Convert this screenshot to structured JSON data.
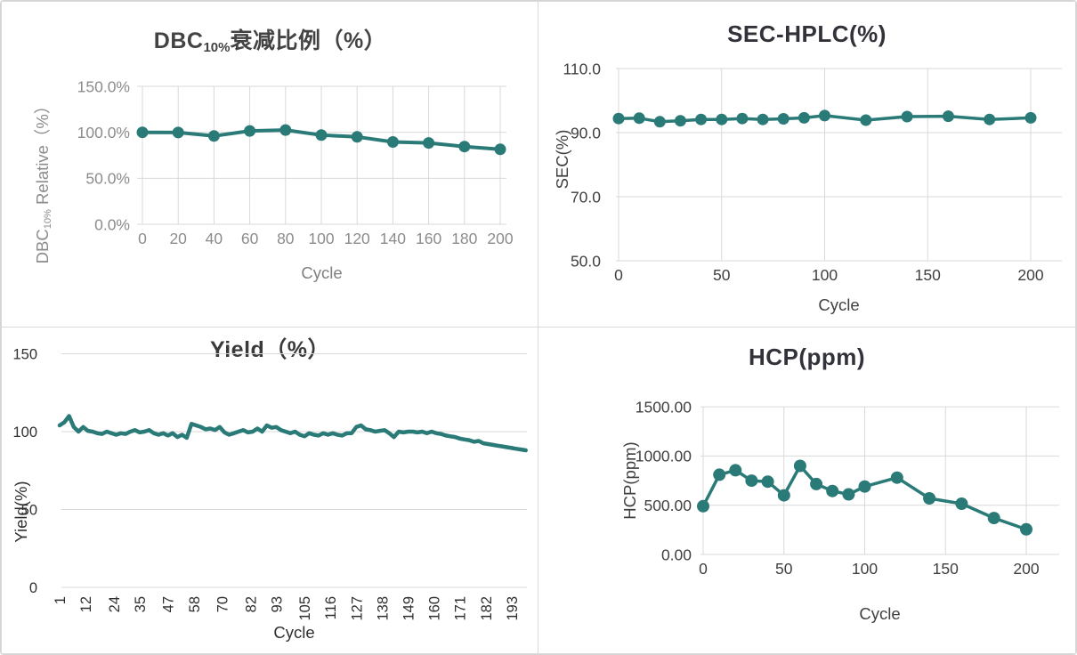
{
  "accent_color": "#2a7a78",
  "grid_color": "#d9d9d9",
  "chart_data": [
    {
      "id": "dbc",
      "type": "line",
      "title": "DBC10%衰减比例（%）",
      "title_rich": {
        "pre": "DBC",
        "sub": "10%",
        "post": "衰减比例（%）"
      },
      "xlabel": "Cycle",
      "ylabel": "DBC10% Relative（%）",
      "ylabel_rich": {
        "pre": "DBC",
        "sub": "10%",
        "post": " Relative（%）"
      },
      "x": [
        0,
        20,
        40,
        60,
        80,
        100,
        120,
        140,
        160,
        180,
        200
      ],
      "values": [
        100,
        99.8,
        96,
        101.5,
        102.5,
        97,
        95,
        89.5,
        88.5,
        84.5,
        81.5
      ],
      "xlim": [
        -3,
        203
      ],
      "ylim": [
        0,
        150
      ],
      "xticks": [
        0,
        20,
        40,
        60,
        80,
        100,
        120,
        140,
        160,
        180,
        200
      ],
      "xtick_labels": [
        "0",
        "20",
        "40",
        "60",
        "80",
        "100",
        "120",
        "140",
        "160",
        "180",
        "200"
      ],
      "yticks": [
        0,
        50,
        100,
        150
      ],
      "ytick_labels": [
        "0.0%",
        "50.0%",
        "100.0%",
        "150.0%"
      ],
      "grid": "both",
      "markers": true,
      "legend": "none"
    },
    {
      "id": "sec",
      "type": "line",
      "title": "SEC-HPLC(%)",
      "xlabel": "Cycle",
      "ylabel": "SEC(%)",
      "x": [
        0,
        10,
        20,
        30,
        40,
        50,
        60,
        70,
        80,
        90,
        100,
        120,
        140,
        160,
        180,
        200
      ],
      "values": [
        94.4,
        94.5,
        93.4,
        93.7,
        94.1,
        94.1,
        94.4,
        94.1,
        94.3,
        94.6,
        95.3,
        93.9,
        95.0,
        95.1,
        94.1,
        94.6
      ],
      "xlim": [
        -2,
        215
      ],
      "ylim": [
        50,
        110
      ],
      "xticks": [
        0,
        50,
        100,
        150,
        200
      ],
      "xtick_labels": [
        "0",
        "50",
        "100",
        "150",
        "200"
      ],
      "yticks": [
        50,
        70,
        90,
        110
      ],
      "ytick_labels": [
        "50.0",
        "70.0",
        "90.0",
        "110.0"
      ],
      "grid": "both",
      "markers": true,
      "legend": "none"
    },
    {
      "id": "yield",
      "type": "line",
      "title": "Yield（%）",
      "xlabel": "Cycle",
      "ylabel": "Yield(%)",
      "x": [
        1,
        3,
        5,
        7,
        9,
        11,
        13,
        15,
        17,
        19,
        21,
        23,
        25,
        27,
        29,
        31,
        33,
        35,
        37,
        39,
        41,
        43,
        45,
        47,
        49,
        51,
        53,
        55,
        57,
        59,
        61,
        63,
        65,
        67,
        69,
        71,
        73,
        75,
        77,
        79,
        81,
        83,
        85,
        87,
        89,
        91,
        93,
        95,
        97,
        99,
        101,
        103,
        105,
        107,
        109,
        111,
        113,
        115,
        117,
        119,
        121,
        123,
        125,
        127,
        129,
        131,
        133,
        135,
        137,
        139,
        141,
        143,
        145,
        147,
        149,
        151,
        153,
        155,
        157,
        159,
        161,
        163,
        165,
        167,
        169,
        171,
        173,
        175,
        177,
        179,
        181,
        183,
        185,
        187,
        189,
        191,
        193,
        195,
        197,
        199
      ],
      "values": [
        104,
        106,
        110,
        103,
        100,
        103,
        100.5,
        100,
        99,
        98.5,
        100,
        99,
        98,
        99,
        98.5,
        100,
        101,
        99.5,
        100,
        101,
        99,
        98,
        99,
        97.5,
        99,
        96.5,
        98,
        96,
        105,
        104,
        103,
        101.5,
        102,
        101,
        103,
        99.5,
        98,
        99,
        100,
        101,
        99.5,
        100,
        102,
        100,
        104,
        102.5,
        103,
        101,
        100,
        99,
        100,
        98,
        97,
        99,
        98,
        97.5,
        99,
        98,
        99,
        98,
        97.5,
        99,
        99,
        103,
        104,
        101.5,
        101,
        100,
        100.5,
        101,
        99,
        96.5,
        100,
        99.5,
        100,
        100,
        99.5,
        100,
        99,
        100,
        99,
        98.5,
        97.5,
        97,
        96.5,
        95.5,
        95,
        94.5,
        93.5,
        94,
        92.5,
        92,
        91.5,
        91,
        90.5,
        90,
        89.5,
        89,
        88.5,
        88
      ],
      "xlim": [
        1,
        204
      ],
      "ylim": [
        0,
        150
      ],
      "xticks": [
        1,
        12,
        24,
        35,
        47,
        58,
        70,
        82,
        93,
        105,
        116,
        127,
        138,
        149,
        160,
        171,
        182,
        193
      ],
      "xtick_labels": [
        "1",
        "12",
        "24",
        "35",
        "47",
        "58",
        "70",
        "82",
        "93",
        "105",
        "116",
        "127",
        "138",
        "149",
        "160",
        "171",
        "182",
        "193"
      ],
      "yticks": [
        0,
        50,
        100,
        150
      ],
      "ytick_labels": [
        "0",
        "50",
        "100",
        "150"
      ],
      "grid": "horizontal",
      "markers": false,
      "legend": "none"
    },
    {
      "id": "hcp",
      "type": "line",
      "title": "HCP(ppm)",
      "xlabel": "Cycle",
      "ylabel": "HCP(ppm)",
      "x": [
        0,
        10,
        20,
        30,
        40,
        50,
        60,
        70,
        80,
        90,
        100,
        120,
        140,
        160,
        180,
        200
      ],
      "values": [
        490,
        810,
        855,
        750,
        740,
        600,
        900,
        715,
        645,
        610,
        690,
        780,
        570,
        515,
        370,
        255
      ],
      "xlim": [
        -2,
        220
      ],
      "ylim": [
        0,
        1500
      ],
      "xticks": [
        0,
        50,
        100,
        150,
        200
      ],
      "xtick_labels": [
        "0",
        "50",
        "100",
        "150",
        "200"
      ],
      "yticks": [
        0,
        500,
        1000,
        1500
      ],
      "ytick_labels": [
        "0.00",
        "500.00",
        "1000.00",
        "1500.00"
      ],
      "grid": "both",
      "markers": true,
      "legend": "none"
    }
  ]
}
